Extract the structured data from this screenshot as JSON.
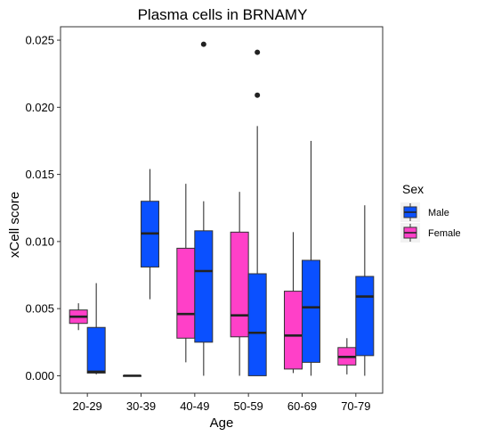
{
  "chart_data": {
    "type": "box",
    "title": "Plasma cells in BRNAMY",
    "xlabel": "Age",
    "ylabel": "xCell score",
    "categories": [
      "20-29",
      "30-39",
      "40-49",
      "50-59",
      "60-69",
      "70-79"
    ],
    "ylim": [
      -0.0013,
      0.026
    ],
    "yticks": [
      0.0,
      0.005,
      0.01,
      0.015,
      0.02,
      0.025
    ],
    "ytick_labels": [
      "0.000",
      "0.005",
      "0.010",
      "0.015",
      "0.020",
      "0.025"
    ],
    "grid": false,
    "legend": {
      "title": "Sex",
      "position": "right",
      "entries": [
        "Male",
        "Female"
      ]
    },
    "series": [
      {
        "name": "Female",
        "color": "#ff40c8",
        "boxes": [
          {
            "category": "20-29",
            "min": 0.0034,
            "q1": 0.0039,
            "median": 0.0044,
            "q3": 0.0049,
            "max": 0.0054,
            "outliers": []
          },
          {
            "category": "30-39",
            "min": 0.0,
            "q1": 0.0,
            "median": 0.0,
            "q3": 0.0,
            "max": 0.0,
            "outliers": []
          },
          {
            "category": "40-49",
            "min": 0.001,
            "q1": 0.0028,
            "median": 0.0046,
            "q3": 0.0095,
            "max": 0.0143,
            "outliers": []
          },
          {
            "category": "50-59",
            "min": 0.0,
            "q1": 0.0029,
            "median": 0.0045,
            "q3": 0.0107,
            "max": 0.0137,
            "outliers": []
          },
          {
            "category": "60-69",
            "min": 0.0002,
            "q1": 0.0005,
            "median": 0.003,
            "q3": 0.0063,
            "max": 0.0107,
            "outliers": []
          },
          {
            "category": "70-79",
            "min": 0.0001,
            "q1": 0.0008,
            "median": 0.0014,
            "q3": 0.0021,
            "max": 0.0028,
            "outliers": []
          }
        ]
      },
      {
        "name": "Male",
        "color": "#0a50ff",
        "boxes": [
          {
            "category": "20-29",
            "min": 0.0001,
            "q1": 0.0002,
            "median": 0.0003,
            "q3": 0.0036,
            "max": 0.0069,
            "outliers": []
          },
          {
            "category": "30-39",
            "min": 0.0057,
            "q1": 0.0081,
            "median": 0.0106,
            "q3": 0.013,
            "max": 0.0154,
            "outliers": []
          },
          {
            "category": "40-49",
            "min": 0.0,
            "q1": 0.0025,
            "median": 0.0078,
            "q3": 0.0108,
            "max": 0.013,
            "outliers": [
              0.0247
            ]
          },
          {
            "category": "50-59",
            "min": 0.0,
            "q1": 0.0,
            "median": 0.0032,
            "q3": 0.0076,
            "max": 0.0186,
            "outliers": [
              0.0241,
              0.0209
            ]
          },
          {
            "category": "60-69",
            "min": 0.0,
            "q1": 0.001,
            "median": 0.0051,
            "q3": 0.0086,
            "max": 0.0175,
            "outliers": []
          },
          {
            "category": "70-79",
            "min": 0.0,
            "q1": 0.0015,
            "median": 0.0059,
            "q3": 0.0074,
            "max": 0.0127,
            "outliers": []
          }
        ]
      }
    ]
  }
}
